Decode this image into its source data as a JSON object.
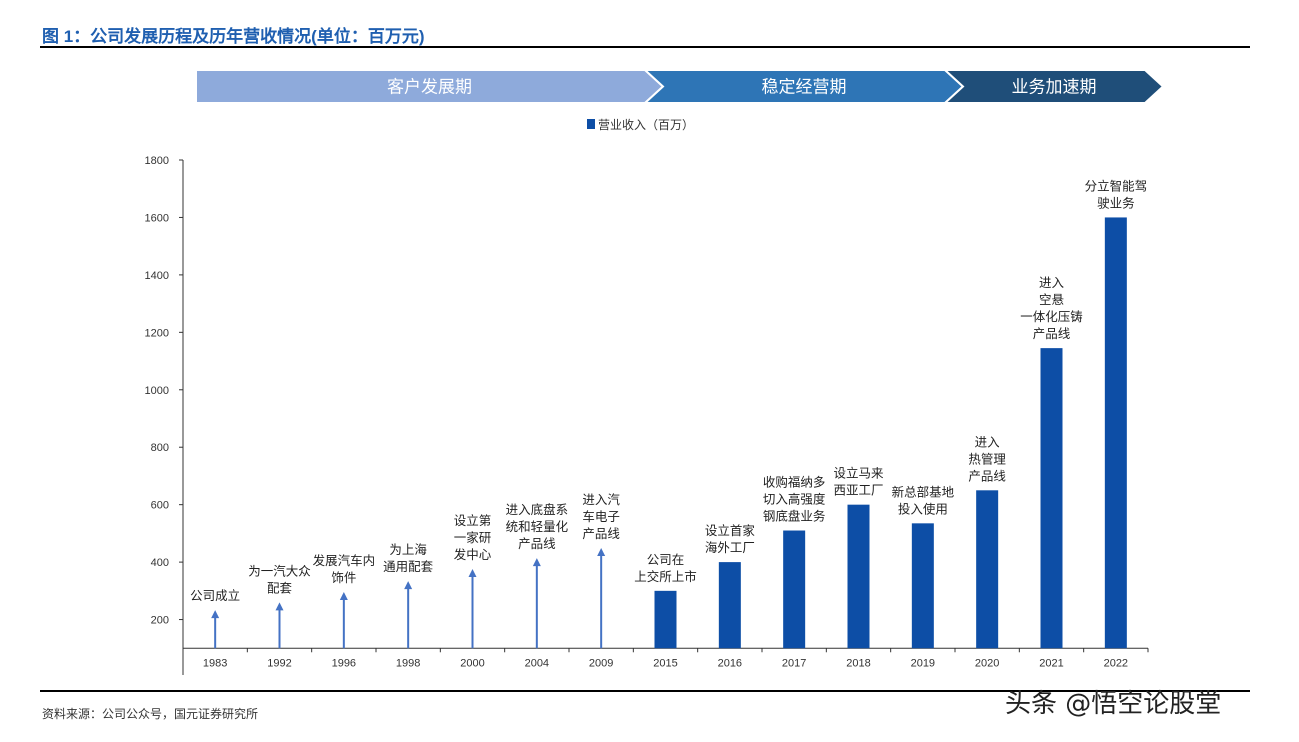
{
  "title": "图 1：公司发展历程及历年营收情况(单位：百万元)",
  "source": "资料来源：公司公众号，国元证券研究所",
  "watermark": "头条 @悟空论股堂",
  "phases": [
    {
      "label": "客户发展期",
      "color": "#8eaadb"
    },
    {
      "label": "稳定经营期",
      "color": "#2e75b6"
    },
    {
      "label": "业务加速期",
      "color": "#1f4e79"
    }
  ],
  "chart_data": {
    "type": "bar",
    "title": "",
    "legend": {
      "label": "营业收入（百万）",
      "position": "top"
    },
    "ylim": [
      0,
      1800
    ],
    "yticks": [
      200,
      400,
      600,
      800,
      1000,
      1200,
      1400,
      1600,
      1800
    ],
    "grid": false,
    "bar_color": "#0d4ea6",
    "arrow_color": "#4472c4",
    "categories": [
      "1983",
      "1992",
      "1996",
      "1998",
      "2000",
      "2004",
      "2009",
      "2015",
      "2016",
      "2017",
      "2018",
      "2019",
      "2020",
      "2021",
      "2022"
    ],
    "values": [
      null,
      null,
      null,
      null,
      null,
      null,
      null,
      300,
      400,
      510,
      600,
      535,
      650,
      1145,
      1600
    ],
    "arrow_levels": [
      233,
      260,
      296,
      334,
      376,
      414,
      449,
      null,
      null,
      null,
      null,
      null,
      null,
      null,
      null
    ],
    "annotations": [
      [
        "公司成立"
      ],
      [
        "为一汽大众",
        "配套"
      ],
      [
        "发展汽车内",
        "饰件"
      ],
      [
        "为上海",
        "通用配套"
      ],
      [
        "设立第",
        "一家研",
        "发中心"
      ],
      [
        "进入底盘系",
        "统和轻量化",
        "产品线"
      ],
      [
        "进入汽",
        "车电子",
        "产品线"
      ],
      [
        "公司在",
        "上交所上市"
      ],
      [
        "设立首家",
        "海外工厂"
      ],
      [
        "收购福纳多",
        "切入高强度",
        "钢底盘业务"
      ],
      [
        "设立马来",
        "西亚工厂"
      ],
      [
        "新总部基地",
        "投入使用"
      ],
      [
        "进入",
        "热管理",
        "产品线"
      ],
      [
        "进入",
        "空悬",
        "一体化压铸",
        "产品线"
      ],
      [
        "分立智能驾",
        "驶业务"
      ]
    ]
  }
}
